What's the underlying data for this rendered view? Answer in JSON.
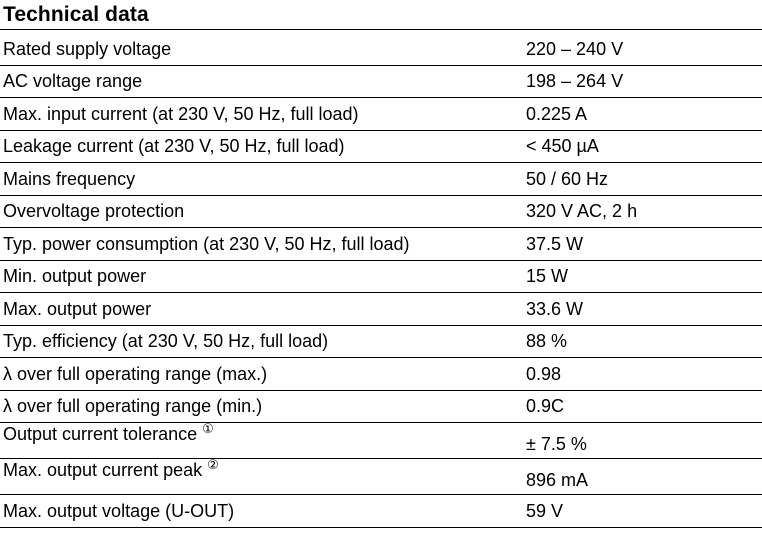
{
  "document": {
    "title": "Technical data",
    "rows": [
      {
        "label": "Rated supply voltage",
        "value": "220 – 240 V",
        "footnote": ""
      },
      {
        "label": "AC voltage range",
        "value": "198 – 264 V",
        "footnote": ""
      },
      {
        "label": "Max. input current (at 230 V, 50 Hz, full load)",
        "value": "0.225 A",
        "footnote": ""
      },
      {
        "label": "Leakage current (at 230 V, 50 Hz, full load)",
        "value": "< 450 µA",
        "footnote": ""
      },
      {
        "label": "Mains frequency",
        "value": "50 / 60 Hz",
        "footnote": ""
      },
      {
        "label": "Overvoltage protection",
        "value": "320 V AC, 2 h",
        "footnote": ""
      },
      {
        "label": "Typ. power consumption (at 230 V, 50 Hz, full load)",
        "value": "37.5 W",
        "footnote": ""
      },
      {
        "label": "Min. output power",
        "value": "15 W",
        "footnote": ""
      },
      {
        "label": "Max. output power",
        "value": "33.6 W",
        "footnote": ""
      },
      {
        "label": "Typ. efficiency (at 230 V, 50 Hz, full load)",
        "value": "88 %",
        "footnote": ""
      },
      {
        "label": "λ over full operating range (max.)",
        "value": "0.98",
        "footnote": ""
      },
      {
        "label": "λ over full operating range (min.)",
        "value": "0.9C",
        "footnote": ""
      },
      {
        "label": "Output current tolerance",
        "value": "± 7.5 %",
        "footnote": "①"
      },
      {
        "label": "Max. output current peak",
        "value": "896 mA",
        "footnote": "②"
      },
      {
        "label": "Max. output voltage (U-OUT)",
        "value": "59 V",
        "footnote": ""
      }
    ]
  }
}
